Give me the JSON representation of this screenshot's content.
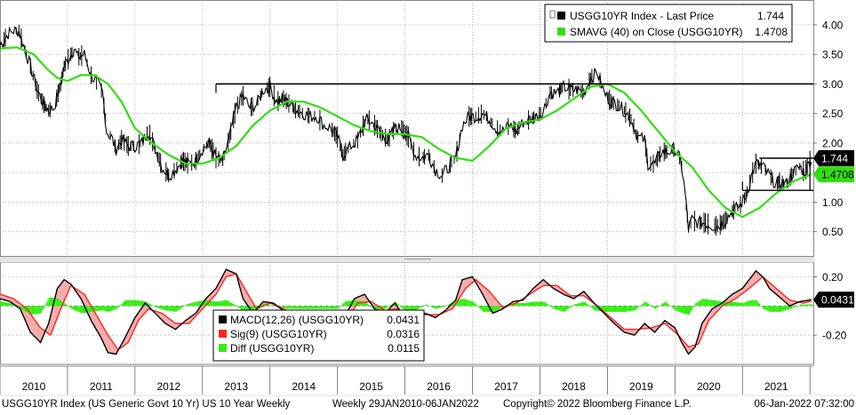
{
  "footer": {
    "left": "USGG10YR Index (US Generic Govt 10 Yr) US 10 Year Weekly",
    "middle": "Weekly 29JAN2010-06JAN2022",
    "right": "Copyright© 2022 Bloomberg Finance L.P.",
    "timestamp": "06-Jan-2022 07:32:00"
  },
  "colors": {
    "price": "#000000",
    "sma": "#33dd11",
    "macd": "#000000",
    "signal": "#ff2222",
    "diff": "#33ee11",
    "grid": "#9a9a9a",
    "level_box": "#000000",
    "label_green_bg": "#33dd11",
    "label_black_bg": "#000000"
  },
  "chart_data": [
    {
      "type": "line",
      "panel": "price",
      "legend_placement": "top-right",
      "grid": true,
      "ylim": [
        0.15,
        4.3
      ],
      "yticks": [
        "4.00",
        "3.50",
        "3.00",
        "2.50",
        "2.00",
        "1.50",
        "1.00",
        "0.50"
      ],
      "ytick_values": [
        4.0,
        3.5,
        3.0,
        2.5,
        2.0,
        1.5,
        1.0,
        0.5
      ],
      "xlim": [
        2010.0,
        2022.05
      ],
      "x_categories": [
        "2010",
        "2011",
        "2012",
        "2013",
        "2014",
        "2015",
        "2016",
        "2017",
        "2018",
        "2019",
        "2020",
        "2021"
      ],
      "series": [
        {
          "name": "USGG10YR Index - Last Price",
          "last_label": "1.744",
          "x": [
            2010.0,
            2010.06,
            2010.12,
            2010.2,
            2010.28,
            2010.35,
            2010.45,
            2010.55,
            2010.65,
            2010.72,
            2010.8,
            2010.9,
            2010.95,
            2011.05,
            2011.1,
            2011.15,
            2011.25,
            2011.35,
            2011.45,
            2011.52,
            2011.58,
            2011.65,
            2011.72,
            2011.8,
            2011.9,
            2012.0,
            2012.1,
            2012.2,
            2012.3,
            2012.4,
            2012.5,
            2012.6,
            2012.7,
            2012.8,
            2012.9,
            2013.0,
            2013.1,
            2013.2,
            2013.3,
            2013.4,
            2013.5,
            2013.6,
            2013.7,
            2013.8,
            2013.9,
            2014.0,
            2014.1,
            2014.2,
            2014.3,
            2014.4,
            2014.5,
            2014.6,
            2014.7,
            2014.8,
            2014.9,
            2015.0,
            2015.08,
            2015.2,
            2015.3,
            2015.4,
            2015.45,
            2015.55,
            2015.65,
            2015.75,
            2015.85,
            2015.95,
            2016.05,
            2016.15,
            2016.25,
            2016.35,
            2016.45,
            2016.55,
            2016.65,
            2016.75,
            2016.85,
            2016.95,
            2017.05,
            2017.15,
            2017.25,
            2017.35,
            2017.45,
            2017.55,
            2017.65,
            2017.75,
            2017.85,
            2017.95,
            2018.05,
            2018.15,
            2018.25,
            2018.35,
            2018.45,
            2018.55,
            2018.65,
            2018.75,
            2018.85,
            2018.95,
            2019.05,
            2019.15,
            2019.25,
            2019.35,
            2019.45,
            2019.55,
            2019.6,
            2019.7,
            2019.8,
            2019.9,
            2020.0,
            2020.05,
            2020.1,
            2020.15,
            2020.2,
            2020.25,
            2020.35,
            2020.45,
            2020.55,
            2020.65,
            2020.75,
            2020.85,
            2020.95,
            2021.05,
            2021.15,
            2021.2,
            2021.3,
            2021.4,
            2021.5,
            2021.55,
            2021.65,
            2021.75,
            2021.85,
            2021.92,
            2022.02
          ],
          "values": [
            3.65,
            3.75,
            3.85,
            3.9,
            3.9,
            3.65,
            3.3,
            2.9,
            2.65,
            2.55,
            2.6,
            3.0,
            3.3,
            3.5,
            3.6,
            3.45,
            3.5,
            3.15,
            3.0,
            2.85,
            2.2,
            2.1,
            1.9,
            2.05,
            1.95,
            1.95,
            2.0,
            2.2,
            1.9,
            1.6,
            1.45,
            1.55,
            1.7,
            1.65,
            1.7,
            1.9,
            2.0,
            1.75,
            1.7,
            2.1,
            2.6,
            2.8,
            2.6,
            2.65,
            2.9,
            2.95,
            2.7,
            2.75,
            2.65,
            2.55,
            2.5,
            2.45,
            2.45,
            2.3,
            2.25,
            2.1,
            1.8,
            1.95,
            2.05,
            2.35,
            2.4,
            2.3,
            2.15,
            2.05,
            2.25,
            2.25,
            2.1,
            1.8,
            1.75,
            1.8,
            1.55,
            1.45,
            1.6,
            1.75,
            2.3,
            2.45,
            2.45,
            2.5,
            2.4,
            2.25,
            2.2,
            2.3,
            2.2,
            2.35,
            2.4,
            2.45,
            2.55,
            2.85,
            2.85,
            2.95,
            2.9,
            2.9,
            2.85,
            3.1,
            3.2,
            2.85,
            2.7,
            2.65,
            2.55,
            2.4,
            2.1,
            2.05,
            1.65,
            1.65,
            1.85,
            1.85,
            1.9,
            1.8,
            1.6,
            1.15,
            0.55,
            0.7,
            0.65,
            0.65,
            0.6,
            0.6,
            0.7,
            0.85,
            0.92,
            1.1,
            1.5,
            1.65,
            1.6,
            1.45,
            1.3,
            1.35,
            1.3,
            1.5,
            1.6,
            1.5,
            1.744
          ]
        },
        {
          "name": "SMAVG (40)  on Close (USGG10YR)",
          "last_label": "1.4708",
          "x": [
            2010.0,
            2010.25,
            2010.5,
            2010.7,
            2010.85,
            2011.0,
            2011.2,
            2011.4,
            2011.6,
            2011.8,
            2012.0,
            2012.25,
            2012.5,
            2012.75,
            2013.0,
            2013.25,
            2013.5,
            2013.75,
            2014.0,
            2014.25,
            2014.5,
            2014.75,
            2015.0,
            2015.25,
            2015.5,
            2015.75,
            2016.0,
            2016.25,
            2016.5,
            2016.75,
            2017.0,
            2017.25,
            2017.5,
            2017.75,
            2018.0,
            2018.25,
            2018.5,
            2018.75,
            2019.0,
            2019.25,
            2019.5,
            2019.75,
            2020.0,
            2020.25,
            2020.5,
            2020.75,
            2021.0,
            2021.25,
            2021.5,
            2021.75,
            2022.02
          ],
          "values": [
            3.6,
            3.62,
            3.5,
            3.25,
            3.1,
            3.05,
            3.15,
            3.15,
            3.0,
            2.7,
            2.25,
            2.0,
            1.8,
            1.65,
            1.65,
            1.75,
            1.95,
            2.3,
            2.55,
            2.7,
            2.7,
            2.6,
            2.45,
            2.3,
            2.2,
            2.15,
            2.15,
            2.1,
            1.9,
            1.75,
            1.7,
            1.95,
            2.25,
            2.35,
            2.4,
            2.55,
            2.75,
            2.95,
            3.0,
            2.85,
            2.55,
            2.2,
            1.85,
            1.6,
            1.2,
            0.9,
            0.75,
            0.9,
            1.15,
            1.35,
            1.4708
          ]
        }
      ],
      "reference_levels": [
        3.0,
        1.744,
        1.2
      ]
    },
    {
      "type": "line",
      "panel": "macd",
      "legend_placement": "bottom-center",
      "grid": true,
      "ylim": [
        -0.4,
        0.3
      ],
      "yticks": [
        "0.20",
        "-0.20"
      ],
      "ytick_values": [
        0.2,
        -0.2
      ],
      "xlim": [
        2010.0,
        2022.05
      ],
      "series": [
        {
          "name": "MACD(12,26) (USGG10YR)",
          "value_label": "0.0431",
          "x": [
            2010.0,
            2010.15,
            2010.3,
            2010.45,
            2010.6,
            2010.72,
            2010.85,
            2010.95,
            2011.05,
            2011.2,
            2011.35,
            2011.5,
            2011.6,
            2011.72,
            2011.85,
            2012.0,
            2012.15,
            2012.3,
            2012.45,
            2012.6,
            2012.75,
            2012.9,
            2013.05,
            2013.2,
            2013.35,
            2013.5,
            2013.6,
            2013.75,
            2013.9,
            2014.05,
            2014.25,
            2014.45,
            2014.65,
            2014.85,
            2015.0,
            2015.1,
            2015.25,
            2015.4,
            2015.55,
            2015.7,
            2015.85,
            2016.0,
            2016.15,
            2016.3,
            2016.45,
            2016.6,
            2016.75,
            2016.85,
            2017.0,
            2017.15,
            2017.3,
            2017.45,
            2017.6,
            2017.75,
            2017.9,
            2018.05,
            2018.2,
            2018.35,
            2018.5,
            2018.65,
            2018.8,
            2018.95,
            2019.1,
            2019.25,
            2019.4,
            2019.55,
            2019.7,
            2019.85,
            2020.0,
            2020.1,
            2020.2,
            2020.3,
            2020.4,
            2020.55,
            2020.7,
            2020.85,
            2021.0,
            2021.1,
            2021.2,
            2021.3,
            2021.4,
            2021.55,
            2021.7,
            2021.85,
            2022.02
          ],
          "values": [
            0.05,
            0.03,
            -0.02,
            -0.18,
            -0.25,
            -0.12,
            0.12,
            0.18,
            0.15,
            0.05,
            -0.1,
            -0.22,
            -0.32,
            -0.33,
            -0.22,
            -0.08,
            0.02,
            -0.05,
            -0.12,
            -0.16,
            -0.1,
            -0.05,
            0.05,
            0.12,
            0.25,
            0.22,
            0.05,
            -0.05,
            0.03,
            0.02,
            -0.05,
            -0.08,
            -0.1,
            -0.12,
            -0.14,
            -0.08,
            0.05,
            0.08,
            -0.02,
            -0.05,
            0.02,
            -0.08,
            -0.1,
            -0.05,
            -0.08,
            -0.03,
            0.04,
            0.18,
            0.2,
            0.08,
            -0.05,
            -0.02,
            0.03,
            0.04,
            0.12,
            0.18,
            0.12,
            0.08,
            0.05,
            0.1,
            0.02,
            -0.05,
            -0.12,
            -0.18,
            -0.2,
            -0.12,
            -0.18,
            -0.1,
            -0.15,
            -0.25,
            -0.33,
            -0.28,
            -0.12,
            -0.02,
            0.02,
            0.08,
            0.12,
            0.18,
            0.24,
            0.2,
            0.12,
            0.06,
            0.0,
            0.03,
            0.0431
          ]
        },
        {
          "name": "Sig(9) (USGG10YR)",
          "value_label": "0.0316",
          "x": [
            2010.0,
            2010.2,
            2010.4,
            2010.6,
            2010.75,
            2010.9,
            2011.05,
            2011.25,
            2011.45,
            2011.6,
            2011.75,
            2011.9,
            2012.05,
            2012.2,
            2012.4,
            2012.6,
            2012.8,
            2013.0,
            2013.2,
            2013.35,
            2013.5,
            2013.65,
            2013.8,
            2014.0,
            2014.3,
            2014.6,
            2014.9,
            2015.1,
            2015.3,
            2015.5,
            2015.7,
            2015.9,
            2016.1,
            2016.3,
            2016.5,
            2016.7,
            2016.9,
            2017.05,
            2017.25,
            2017.45,
            2017.65,
            2017.85,
            2018.05,
            2018.25,
            2018.45,
            2018.65,
            2018.85,
            2019.05,
            2019.25,
            2019.45,
            2019.65,
            2019.85,
            2020.05,
            2020.2,
            2020.35,
            2020.5,
            2020.7,
            2020.9,
            2021.1,
            2021.3,
            2021.5,
            2021.7,
            2021.9,
            2022.02
          ],
          "values": [
            0.08,
            0.05,
            -0.02,
            -0.15,
            -0.2,
            -0.02,
            0.14,
            0.08,
            -0.08,
            -0.2,
            -0.3,
            -0.25,
            -0.1,
            -0.02,
            -0.05,
            -0.12,
            -0.12,
            -0.02,
            0.08,
            0.2,
            0.22,
            0.1,
            -0.02,
            0.02,
            -0.04,
            -0.08,
            -0.11,
            -0.12,
            0.02,
            0.03,
            -0.03,
            -0.02,
            -0.08,
            -0.06,
            -0.06,
            -0.02,
            0.12,
            0.18,
            0.1,
            -0.01,
            0.02,
            0.08,
            0.14,
            0.14,
            0.07,
            0.07,
            0.0,
            -0.08,
            -0.16,
            -0.16,
            -0.15,
            -0.12,
            -0.2,
            -0.28,
            -0.26,
            -0.1,
            0.0,
            0.05,
            0.12,
            0.2,
            0.12,
            0.04,
            0.02,
            0.0316
          ]
        },
        {
          "name": "Diff (USGG10YR)",
          "value_label": "0.0115",
          "x": [
            2010.0,
            2010.15,
            2010.3,
            2010.45,
            2010.6,
            2010.72,
            2010.85,
            2010.95,
            2011.05,
            2011.2,
            2011.35,
            2011.5,
            2011.6,
            2011.72,
            2011.85,
            2012.0,
            2012.15,
            2012.3,
            2012.45,
            2012.6,
            2012.75,
            2012.9,
            2013.05,
            2013.2,
            2013.35,
            2013.5,
            2013.6,
            2013.75,
            2013.9,
            2014.05,
            2014.25,
            2014.45,
            2014.65,
            2014.85,
            2015.0,
            2015.1,
            2015.25,
            2015.4,
            2015.55,
            2015.7,
            2015.85,
            2016.0,
            2016.15,
            2016.3,
            2016.45,
            2016.6,
            2016.75,
            2016.85,
            2017.0,
            2017.15,
            2017.3,
            2017.45,
            2017.6,
            2017.75,
            2017.9,
            2018.05,
            2018.2,
            2018.35,
            2018.5,
            2018.65,
            2018.8,
            2018.95,
            2019.1,
            2019.25,
            2019.4,
            2019.55,
            2019.7,
            2019.85,
            2020.0,
            2020.1,
            2020.2,
            2020.3,
            2020.4,
            2020.55,
            2020.7,
            2020.85,
            2021.0,
            2021.1,
            2021.2,
            2021.3,
            2021.4,
            2021.55,
            2021.7,
            2021.85,
            2022.02
          ],
          "values": [
            0.03,
            0.02,
            -0.02,
            -0.06,
            -0.05,
            0.06,
            0.05,
            0.02,
            -0.02,
            -0.05,
            -0.04,
            -0.03,
            -0.04,
            -0.02,
            0.04,
            0.04,
            0.03,
            -0.01,
            -0.03,
            -0.04,
            0.01,
            0.03,
            0.04,
            0.03,
            0.04,
            0.0,
            -0.04,
            -0.04,
            0.02,
            0.0,
            -0.02,
            -0.02,
            -0.02,
            -0.02,
            -0.02,
            0.03,
            0.04,
            0.03,
            -0.03,
            -0.02,
            0.03,
            -0.04,
            -0.03,
            0.01,
            -0.02,
            0.0,
            0.04,
            0.05,
            0.03,
            -0.04,
            -0.04,
            0.0,
            0.02,
            0.02,
            0.03,
            0.03,
            -0.02,
            -0.04,
            0.01,
            0.03,
            -0.03,
            -0.04,
            -0.04,
            -0.04,
            -0.03,
            0.03,
            -0.02,
            0.03,
            -0.03,
            -0.05,
            -0.06,
            0.02,
            0.05,
            0.04,
            0.03,
            0.03,
            0.02,
            0.04,
            0.04,
            -0.02,
            -0.04,
            -0.04,
            -0.02,
            0.01,
            0.0115
          ]
        }
      ]
    }
  ]
}
